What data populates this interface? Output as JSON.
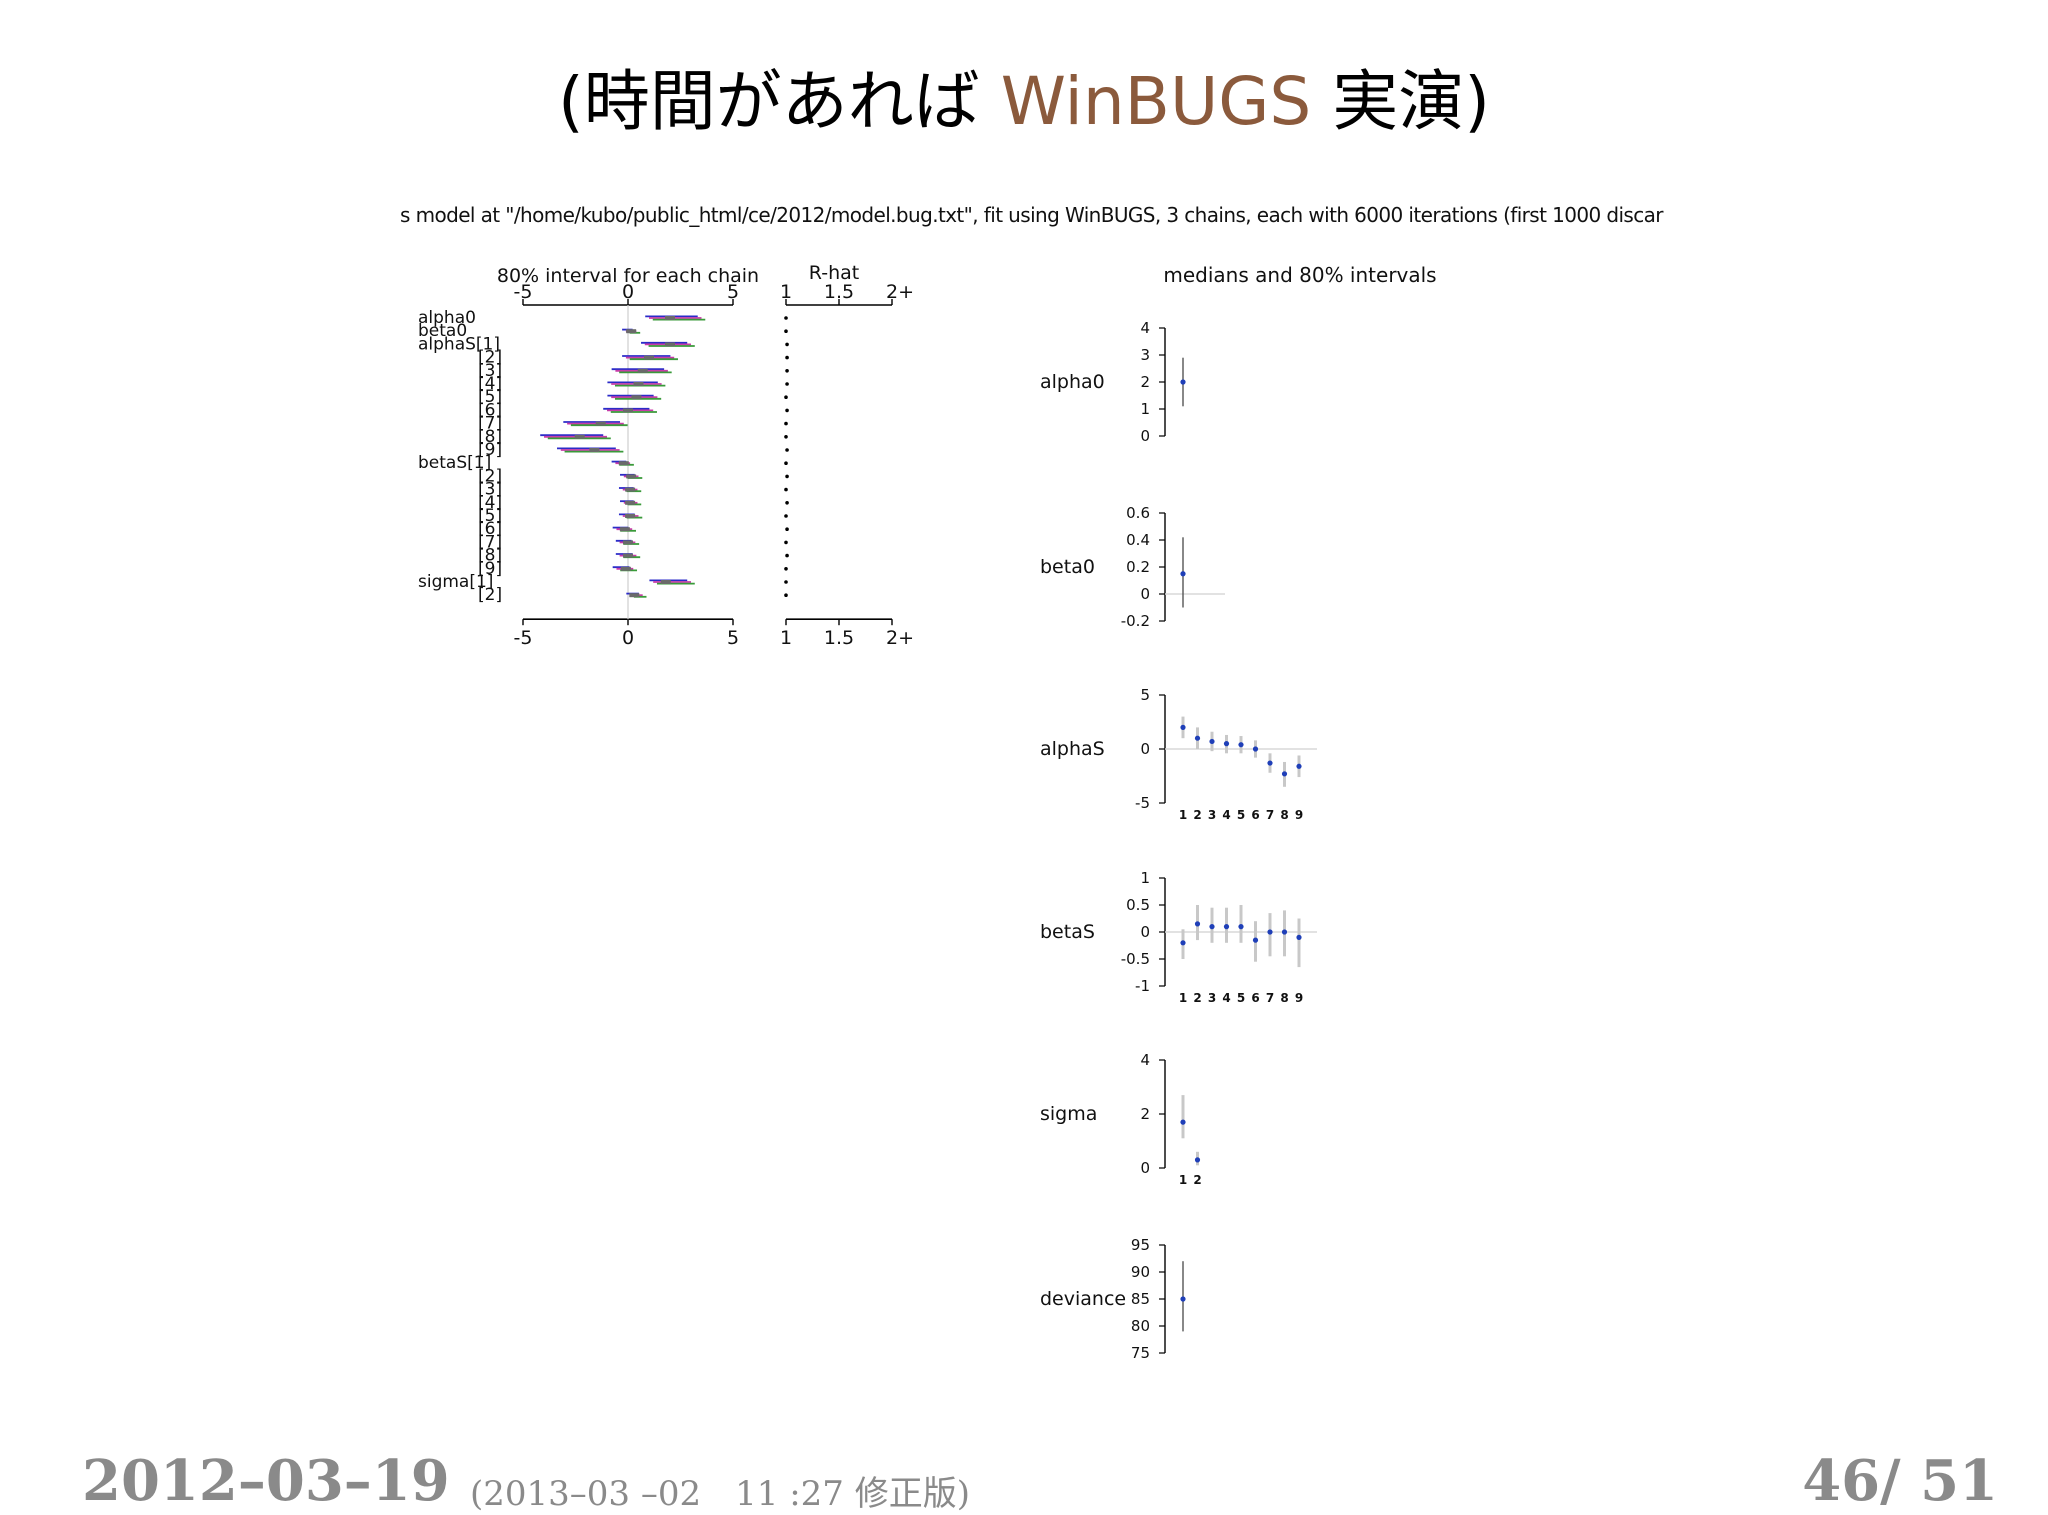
{
  "slide": {
    "title_prefix": "(時間があれば ",
    "title_accent": "WinBUGS",
    "title_suffix": " 実演)",
    "accent_color": "#8b5a3c"
  },
  "footer": {
    "date": "2012–03–19",
    "revision": "(2013–03 –02　11 :27 修正版)",
    "page": "46/ 51"
  },
  "chart_data": [
    {
      "type": "interval",
      "header": "s model at \"/home/kubo/public_html/ce/2012/model.bug.txt\", fit using WinBUGS, 3 chains, each with 6000 iterations (first 1000 discar",
      "title": "80% interval for each chain",
      "xlim": [
        -5,
        5
      ],
      "xticks": [
        "-5",
        "0",
        "5"
      ],
      "chain_colors": [
        "#2b2bc8",
        "#c83ca8",
        "#3a9a3a"
      ],
      "rows": [
        {
          "label": "alpha0",
          "median": 2.0,
          "lo": 1.0,
          "hi": 3.5
        },
        {
          "label": "beta0",
          "median": 0.15,
          "lo": -0.1,
          "hi": 0.4
        },
        {
          "label": "alphaS[1]",
          "median": 2.0,
          "lo": 0.8,
          "hi": 3.0
        },
        {
          "label": "[2]",
          "median": 1.0,
          "lo": -0.1,
          "hi": 2.2
        },
        {
          "label": "[3]",
          "median": 0.7,
          "lo": -0.6,
          "hi": 1.9
        },
        {
          "label": "[4]",
          "median": 0.5,
          "lo": -0.8,
          "hi": 1.6
        },
        {
          "label": "[5]",
          "median": 0.4,
          "lo": -0.8,
          "hi": 1.4
        },
        {
          "label": "[6]",
          "median": 0.0,
          "lo": -1.0,
          "hi": 1.2
        },
        {
          "label": "[7]",
          "median": -1.3,
          "lo": -2.9,
          "hi": -0.2
        },
        {
          "label": "[8]",
          "median": -2.3,
          "lo": -4.0,
          "hi": -1.0
        },
        {
          "label": "[9]",
          "median": -1.6,
          "lo": -3.2,
          "hi": -0.4
        },
        {
          "label": "betaS[1]",
          "median": -0.2,
          "lo": -0.6,
          "hi": 0.1
        },
        {
          "label": "[2]",
          "median": 0.15,
          "lo": -0.2,
          "hi": 0.5
        },
        {
          "label": "[3]",
          "median": 0.1,
          "lo": -0.25,
          "hi": 0.45
        },
        {
          "label": "[4]",
          "median": 0.1,
          "lo": -0.2,
          "hi": 0.45
        },
        {
          "label": "[5]",
          "median": 0.1,
          "lo": -0.25,
          "hi": 0.5
        },
        {
          "label": "[6]",
          "median": -0.15,
          "lo": -0.55,
          "hi": 0.2
        },
        {
          "label": "[7]",
          "median": 0.0,
          "lo": -0.4,
          "hi": 0.35
        },
        {
          "label": "[8]",
          "median": 0.0,
          "lo": -0.4,
          "hi": 0.4
        },
        {
          "label": "[9]",
          "median": -0.1,
          "lo": -0.55,
          "hi": 0.25
        },
        {
          "label": "sigma[1]",
          "median": 1.8,
          "lo": 1.2,
          "hi": 3.0
        },
        {
          "label": "[2]",
          "median": 0.3,
          "lo": 0.1,
          "hi": 0.7
        }
      ],
      "rhat": {
        "title": "R-hat",
        "xlim": [
          1,
          2
        ],
        "xticks": [
          "1",
          "1.5",
          "2+"
        ],
        "values": [
          1.0,
          1.0,
          1.01,
          1.01,
          1.01,
          1.01,
          1.0,
          1.01,
          1.0,
          1.0,
          1.01,
          1.0,
          1.01,
          1.0,
          1.01,
          1.0,
          1.01,
          1.0,
          1.01,
          1.0,
          1.0,
          1.0
        ]
      }
    },
    {
      "type": "interval",
      "title": "medians and 80% intervals",
      "panels": [
        {
          "label": "alpha0",
          "ylim": [
            0,
            4
          ],
          "ticks": [
            "4",
            "3",
            "2",
            "1",
            "0"
          ],
          "tick_values": [
            4,
            3,
            2,
            1,
            0
          ],
          "zero_line": false,
          "index_labels": [],
          "points": [
            {
              "median": 2.0,
              "lo": 1.1,
              "hi": 2.9
            }
          ]
        },
        {
          "label": "beta0",
          "ylim": [
            -0.2,
            0.6
          ],
          "ticks": [
            "0.6",
            "0.4",
            "0.2",
            "0",
            "-0.2"
          ],
          "tick_values": [
            0.6,
            0.4,
            0.2,
            0,
            -0.2
          ],
          "zero_line": true,
          "index_labels": [],
          "points": [
            {
              "median": 0.15,
              "lo": -0.1,
              "hi": 0.42
            }
          ]
        },
        {
          "label": "alphaS",
          "ylim": [
            -5,
            5
          ],
          "ticks": [
            "5",
            "0",
            "-5"
          ],
          "tick_values": [
            5,
            0,
            -5
          ],
          "zero_line": true,
          "index_labels": [
            "1",
            "2",
            "3",
            "4",
            "5",
            "6",
            "7",
            "8",
            "9"
          ],
          "points": [
            {
              "median": 2.0,
              "lo": 1.0,
              "hi": 3.0
            },
            {
              "median": 1.0,
              "lo": 0.0,
              "hi": 2.0
            },
            {
              "median": 0.7,
              "lo": -0.2,
              "hi": 1.6
            },
            {
              "median": 0.5,
              "lo": -0.4,
              "hi": 1.3
            },
            {
              "median": 0.4,
              "lo": -0.4,
              "hi": 1.2
            },
            {
              "median": 0.0,
              "lo": -0.8,
              "hi": 0.8
            },
            {
              "median": -1.3,
              "lo": -2.2,
              "hi": -0.4
            },
            {
              "median": -2.3,
              "lo": -3.5,
              "hi": -1.2
            },
            {
              "median": -1.6,
              "lo": -2.6,
              "hi": -0.6
            }
          ]
        },
        {
          "label": "betaS",
          "ylim": [
            -1,
            1
          ],
          "ticks": [
            "1",
            "0.5",
            "0",
            "-0.5",
            "-1"
          ],
          "tick_values": [
            1,
            0.5,
            0,
            -0.5,
            -1
          ],
          "zero_line": true,
          "index_labels": [
            "1",
            "2",
            "3",
            "4",
            "5",
            "6",
            "7",
            "8",
            "9"
          ],
          "points": [
            {
              "median": -0.2,
              "lo": -0.5,
              "hi": 0.05
            },
            {
              "median": 0.15,
              "lo": -0.15,
              "hi": 0.5
            },
            {
              "median": 0.1,
              "lo": -0.2,
              "hi": 0.45
            },
            {
              "median": 0.1,
              "lo": -0.2,
              "hi": 0.45
            },
            {
              "median": 0.1,
              "lo": -0.2,
              "hi": 0.5
            },
            {
              "median": -0.15,
              "lo": -0.55,
              "hi": 0.2
            },
            {
              "median": 0.0,
              "lo": -0.45,
              "hi": 0.35
            },
            {
              "median": 0.0,
              "lo": -0.45,
              "hi": 0.4
            },
            {
              "median": -0.1,
              "lo": -0.65,
              "hi": 0.25
            }
          ]
        },
        {
          "label": "sigma",
          "ylim": [
            0,
            4
          ],
          "ticks": [
            "4",
            "2",
            "0"
          ],
          "tick_values": [
            4,
            2,
            0
          ],
          "zero_line": false,
          "index_labels": [
            "1",
            "2"
          ],
          "points": [
            {
              "median": 1.7,
              "lo": 1.1,
              "hi": 2.7
            },
            {
              "median": 0.3,
              "lo": 0.1,
              "hi": 0.6
            }
          ]
        },
        {
          "label": "deviance",
          "ylim": [
            75,
            95
          ],
          "ticks": [
            "95",
            "90",
            "85",
            "80",
            "75"
          ],
          "tick_values": [
            95,
            90,
            85,
            80,
            75
          ],
          "zero_line": false,
          "index_labels": [],
          "points": [
            {
              "median": 85,
              "lo": 79,
              "hi": 92
            }
          ]
        }
      ]
    }
  ]
}
